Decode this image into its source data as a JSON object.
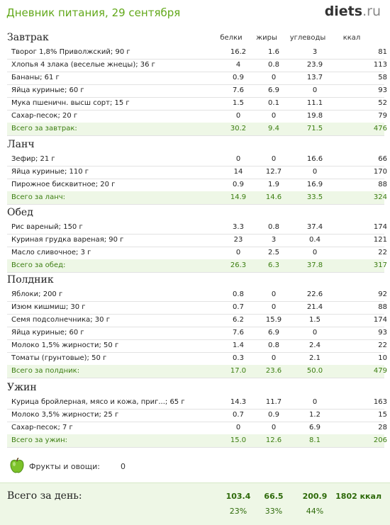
{
  "header": {
    "title": "Дневник питания, 29 сентября",
    "logo_main": "diets",
    "logo_suffix": ".ru"
  },
  "columns": {
    "protein": "белки",
    "fat": "жиры",
    "carbs": "углеводы",
    "kcal": "ккал"
  },
  "meals": [
    {
      "title": "Завтрак",
      "items": [
        [
          "Творог 1,8% Приволжский; 90 г",
          "16.2",
          "1.6",
          "3",
          "81"
        ],
        [
          "Хлопья 4 злака (веселые жнецы); 36 г",
          "4",
          "0.8",
          "23.9",
          "113"
        ],
        [
          "Бананы; 61 г",
          "0.9",
          "0",
          "13.7",
          "58"
        ],
        [
          "Яйца куриные; 60 г",
          "7.6",
          "6.9",
          "0",
          "93"
        ],
        [
          "Мука пшеничн. высш сорт; 15 г",
          "1.5",
          "0.1",
          "11.1",
          "52"
        ],
        [
          "Сахар-песок; 20 г",
          "0",
          "0",
          "19.8",
          "79"
        ]
      ],
      "total": [
        "Всего за завтрак:",
        "30.2",
        "9.4",
        "71.5",
        "476"
      ]
    },
    {
      "title": "Ланч",
      "items": [
        [
          "Зефир; 21 г",
          "0",
          "0",
          "16.6",
          "66"
        ],
        [
          "Яйца куриные; 110 г",
          "14",
          "12.7",
          "0",
          "170"
        ],
        [
          "Пирожное бисквитное; 20 г",
          "0.9",
          "1.9",
          "16.9",
          "88"
        ]
      ],
      "total": [
        "Всего за ланч:",
        "14.9",
        "14.6",
        "33.5",
        "324"
      ]
    },
    {
      "title": "Обед",
      "items": [
        [
          "Рис вареный; 150 г",
          "3.3",
          "0.8",
          "37.4",
          "174"
        ],
        [
          "Куриная грудка вареная; 90 г",
          "23",
          "3",
          "0.4",
          "121"
        ],
        [
          "Масло сливочное; 3 г",
          "0",
          "2.5",
          "0",
          "22"
        ]
      ],
      "total": [
        "Всего за обед:",
        "26.3",
        "6.3",
        "37.8",
        "317"
      ]
    },
    {
      "title": "Полдник",
      "items": [
        [
          "Яблоки; 200 г",
          "0.8",
          "0",
          "22.6",
          "92"
        ],
        [
          "Изюм кишмиш; 30 г",
          "0.7",
          "0",
          "21.4",
          "88"
        ],
        [
          "Семя подсолнечника; 30 г",
          "6.2",
          "15.9",
          "1.5",
          "174"
        ],
        [
          "Яйца куриные; 60 г",
          "7.6",
          "6.9",
          "0",
          "93"
        ],
        [
          "Молоко 1,5% жирности; 50 г",
          "1.4",
          "0.8",
          "2.4",
          "22"
        ],
        [
          "Томаты (грунтовые); 50 г",
          "0.3",
          "0",
          "2.1",
          "10"
        ]
      ],
      "total": [
        "Всего за полдник:",
        "17.0",
        "23.6",
        "50.0",
        "479"
      ]
    },
    {
      "title": "Ужин",
      "items": [
        [
          "Курица бройлерная, мясо и кожа, приг...; 65 г",
          "14.3",
          "11.7",
          "0",
          "163"
        ],
        [
          "Молоко 3,5% жирности; 25 г",
          "0.7",
          "0.9",
          "1.2",
          "15"
        ],
        [
          "Сахар-песок; 7 г",
          "0",
          "0",
          "6.9",
          "28"
        ]
      ],
      "total": [
        "Всего за ужин:",
        "15.0",
        "12.6",
        "8.1",
        "206"
      ]
    }
  ],
  "fruits": {
    "icon": "apple-icon",
    "label": "Фрукты и овощи:",
    "value": "0"
  },
  "day_total": {
    "label": "Всего за день:",
    "protein": "103.4",
    "fat": "66.5",
    "carbs": "200.9",
    "kcal": "1802 ккал",
    "protein_pct": "23%",
    "fat_pct": "33%",
    "carbs_pct": "44%"
  },
  "colors": {
    "accent_green": "#62a81a",
    "total_bg": "#eef7e6",
    "total_text": "#3b7d10"
  }
}
